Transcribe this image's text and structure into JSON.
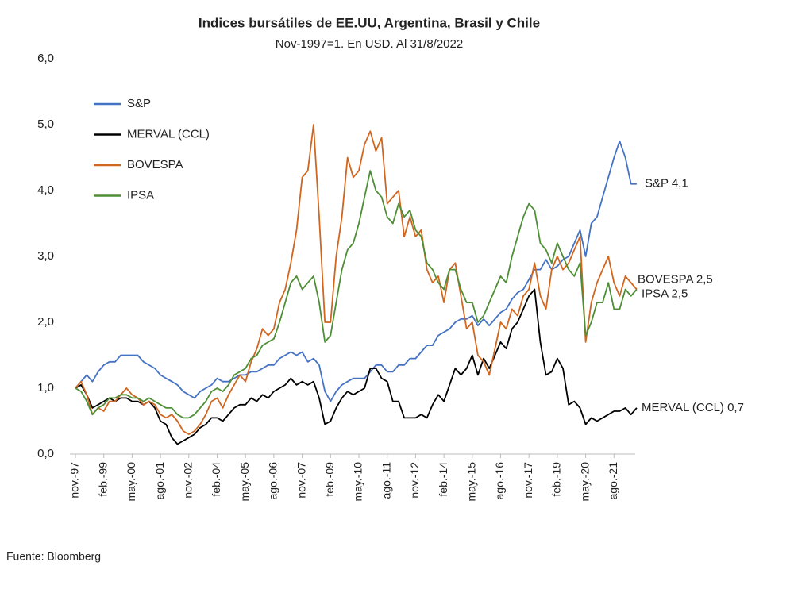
{
  "chart_data": {
    "type": "line",
    "title": "Indices bursátiles de EE.UU, Argentina, Brasil y Chile",
    "subtitle": "Nov-1997=1. En USD. Al 31/8/2022",
    "source": "Fuente: Bloomberg",
    "ylim": [
      0,
      6
    ],
    "yticks": [
      {
        "value": 0,
        "label": "0,0"
      },
      {
        "value": 1,
        "label": "1,0"
      },
      {
        "value": 2,
        "label": "2,0"
      },
      {
        "value": 3,
        "label": "3,0"
      },
      {
        "value": 4,
        "label": "4,0"
      },
      {
        "value": 5,
        "label": "5,0"
      },
      {
        "value": 6,
        "label": "6,0"
      }
    ],
    "grid": false,
    "legend": "upper left",
    "categories": [
      "nov.-97",
      null,
      null,
      null,
      null,
      "feb.-99",
      null,
      null,
      null,
      null,
      "may.-00",
      null,
      null,
      null,
      null,
      "ago.-01",
      null,
      null,
      null,
      null,
      "nov.-02",
      null,
      null,
      null,
      null,
      "feb.-04",
      null,
      null,
      null,
      null,
      "may.-05",
      null,
      null,
      null,
      null,
      "ago.-06",
      null,
      null,
      null,
      null,
      "nov.-07",
      null,
      null,
      null,
      null,
      "feb.-09",
      null,
      null,
      null,
      null,
      "may.-10",
      null,
      null,
      null,
      null,
      "ago.-11",
      null,
      null,
      null,
      null,
      "nov.-12",
      null,
      null,
      null,
      null,
      "feb.-14",
      null,
      null,
      null,
      null,
      "may.-15",
      null,
      null,
      null,
      null,
      "ago.-16",
      null,
      null,
      null,
      null,
      "nov.-17",
      null,
      null,
      null,
      null,
      "feb.-19",
      null,
      null,
      null,
      null,
      "may.-20",
      null,
      null,
      null,
      null,
      "ago.-21",
      null,
      null,
      null,
      null
    ],
    "series": [
      {
        "name": "S&P",
        "color": "#4472c4",
        "end_label": "S&P 4,1",
        "values": [
          1.0,
          1.1,
          1.2,
          1.1,
          1.25,
          1.35,
          1.4,
          1.4,
          1.5,
          1.5,
          1.5,
          1.5,
          1.4,
          1.35,
          1.3,
          1.2,
          1.15,
          1.1,
          1.05,
          0.95,
          0.9,
          0.85,
          0.95,
          1.0,
          1.05,
          1.15,
          1.1,
          1.1,
          1.15,
          1.2,
          1.2,
          1.25,
          1.25,
          1.3,
          1.35,
          1.35,
          1.45,
          1.5,
          1.55,
          1.5,
          1.55,
          1.4,
          1.45,
          1.35,
          0.95,
          0.8,
          0.95,
          1.05,
          1.1,
          1.15,
          1.15,
          1.15,
          1.25,
          1.35,
          1.35,
          1.25,
          1.25,
          1.35,
          1.35,
          1.45,
          1.45,
          1.55,
          1.65,
          1.65,
          1.8,
          1.85,
          1.9,
          2.0,
          2.05,
          2.05,
          2.1,
          1.95,
          2.05,
          1.95,
          2.05,
          2.15,
          2.2,
          2.35,
          2.45,
          2.5,
          2.65,
          2.8,
          2.8,
          2.95,
          2.8,
          2.85,
          2.95,
          3.0,
          3.2,
          3.4,
          3.0,
          3.5,
          3.6,
          3.9,
          4.2,
          4.5,
          4.75,
          4.5,
          4.1,
          4.1
        ]
      },
      {
        "name": "MERVAL (CCL)",
        "color": "#000000",
        "end_label": "MERVAL (CCL) 0,7",
        "values": [
          1.0,
          1.05,
          0.9,
          0.7,
          0.75,
          0.8,
          0.85,
          0.8,
          0.85,
          0.85,
          0.8,
          0.8,
          0.75,
          0.8,
          0.7,
          0.5,
          0.45,
          0.25,
          0.15,
          0.2,
          0.25,
          0.3,
          0.4,
          0.45,
          0.55,
          0.55,
          0.5,
          0.6,
          0.7,
          0.75,
          0.75,
          0.85,
          0.8,
          0.9,
          0.85,
          0.95,
          1.0,
          1.05,
          1.15,
          1.05,
          1.1,
          1.05,
          1.1,
          0.85,
          0.45,
          0.5,
          0.7,
          0.85,
          0.95,
          0.9,
          0.95,
          1.0,
          1.3,
          1.3,
          1.15,
          1.1,
          0.8,
          0.8,
          0.55,
          0.55,
          0.55,
          0.6,
          0.55,
          0.75,
          0.9,
          0.8,
          1.05,
          1.3,
          1.2,
          1.3,
          1.5,
          1.2,
          1.45,
          1.3,
          1.5,
          1.7,
          1.6,
          1.9,
          2.0,
          2.2,
          2.4,
          2.5,
          1.7,
          1.2,
          1.25,
          1.45,
          1.3,
          0.75,
          0.8,
          0.7,
          0.45,
          0.55,
          0.5,
          0.55,
          0.6,
          0.65,
          0.65,
          0.7,
          0.6,
          0.7
        ]
      },
      {
        "name": "BOVESPA",
        "color": "#d0661f",
        "end_label": "BOVESPA 2,5",
        "values": [
          1.0,
          1.1,
          0.9,
          0.6,
          0.7,
          0.65,
          0.8,
          0.8,
          0.9,
          1.0,
          0.9,
          0.85,
          0.75,
          0.8,
          0.75,
          0.6,
          0.55,
          0.6,
          0.5,
          0.35,
          0.3,
          0.35,
          0.45,
          0.6,
          0.8,
          0.85,
          0.7,
          0.9,
          1.05,
          1.2,
          1.1,
          1.4,
          1.6,
          1.9,
          1.8,
          1.9,
          2.3,
          2.5,
          2.9,
          3.4,
          4.2,
          4.3,
          5.0,
          3.6,
          2.0,
          2.0,
          3.0,
          3.6,
          4.5,
          4.2,
          4.3,
          4.7,
          4.9,
          4.6,
          4.8,
          3.8,
          3.9,
          4.0,
          3.3,
          3.6,
          3.3,
          3.4,
          2.8,
          2.6,
          2.7,
          2.3,
          2.8,
          2.9,
          2.4,
          1.9,
          2.0,
          1.5,
          1.4,
          1.2,
          1.6,
          2.0,
          1.9,
          2.2,
          2.1,
          2.4,
          2.5,
          2.9,
          2.4,
          2.2,
          2.8,
          3.0,
          2.8,
          2.9,
          3.1,
          3.3,
          1.7,
          2.3,
          2.6,
          2.8,
          3.0,
          2.6,
          2.4,
          2.7,
          2.6,
          2.5
        ]
      },
      {
        "name": "IPSA",
        "color": "#4e8f35",
        "end_label": "IPSA 2,5",
        "values": [
          1.0,
          0.95,
          0.8,
          0.6,
          0.7,
          0.75,
          0.85,
          0.85,
          0.9,
          0.9,
          0.85,
          0.85,
          0.8,
          0.85,
          0.8,
          0.75,
          0.7,
          0.7,
          0.6,
          0.55,
          0.55,
          0.6,
          0.7,
          0.8,
          0.95,
          1.0,
          0.95,
          1.05,
          1.2,
          1.25,
          1.3,
          1.45,
          1.5,
          1.65,
          1.7,
          1.75,
          2.0,
          2.3,
          2.6,
          2.7,
          2.5,
          2.6,
          2.7,
          2.3,
          1.7,
          1.8,
          2.3,
          2.8,
          3.1,
          3.2,
          3.5,
          3.9,
          4.3,
          4.0,
          3.9,
          3.6,
          3.5,
          3.8,
          3.6,
          3.7,
          3.4,
          3.3,
          2.9,
          2.8,
          2.6,
          2.5,
          2.8,
          2.8,
          2.5,
          2.3,
          2.3,
          2.0,
          2.1,
          2.3,
          2.5,
          2.7,
          2.6,
          3.0,
          3.3,
          3.6,
          3.8,
          3.7,
          3.2,
          3.1,
          2.9,
          3.2,
          3.0,
          2.8,
          2.7,
          2.9,
          1.8,
          2.0,
          2.3,
          2.3,
          2.6,
          2.2,
          2.2,
          2.5,
          2.4,
          2.5
        ]
      }
    ]
  }
}
